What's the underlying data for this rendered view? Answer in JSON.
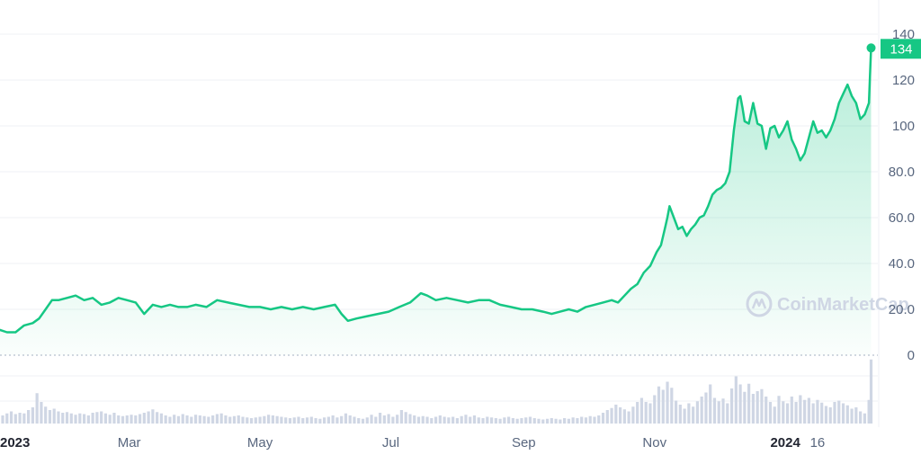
{
  "watermark": {
    "text": "CoinMarketCap"
  },
  "current_price": {
    "label": "134"
  },
  "colors": {
    "line": "#16c784",
    "fill": "#16c784",
    "grid": "#eff2f5",
    "volume": "#cfd6e4",
    "axis_text": "#58667e"
  },
  "chart_data": {
    "type": "area",
    "title": "",
    "xlabel": "",
    "ylabel": "",
    "ylim": [
      0,
      140
    ],
    "yticks": [
      "140",
      "120",
      "100",
      "80.0",
      "60.0",
      "40.0",
      "20.0",
      "0"
    ],
    "ytick_values": [
      140,
      120,
      100,
      80,
      60,
      40,
      20,
      0
    ],
    "xticks": [
      {
        "label": "2023",
        "day": 0,
        "bold": true
      },
      {
        "label": "Mar",
        "day": 59,
        "bold": false
      },
      {
        "label": "May",
        "day": 120,
        "bold": false
      },
      {
        "label": "Jul",
        "day": 181,
        "bold": false
      },
      {
        "label": "Sep",
        "day": 243,
        "bold": false
      },
      {
        "label": "Nov",
        "day": 304,
        "bold": false
      },
      {
        "label": "2024",
        "day": 365,
        "bold": true
      },
      {
        "label": "16",
        "day": 380,
        "bold": false
      }
    ],
    "series": [
      {
        "values": [
          [
            -3,
            11
          ],
          [
            2,
            10
          ],
          [
            6,
            10
          ],
          [
            10,
            13
          ],
          [
            14,
            14
          ],
          [
            17,
            16
          ],
          [
            20,
            20
          ],
          [
            23,
            24
          ],
          [
            26,
            24
          ],
          [
            30,
            25
          ],
          [
            34,
            26
          ],
          [
            38,
            24
          ],
          [
            42,
            25
          ],
          [
            46,
            22
          ],
          [
            50,
            23
          ],
          [
            54,
            25
          ],
          [
            58,
            24
          ],
          [
            62,
            23
          ],
          [
            66,
            18
          ],
          [
            70,
            22
          ],
          [
            74,
            21
          ],
          [
            78,
            22
          ],
          [
            82,
            21
          ],
          [
            86,
            21
          ],
          [
            90,
            22
          ],
          [
            95,
            21
          ],
          [
            100,
            24
          ],
          [
            105,
            23
          ],
          [
            110,
            22
          ],
          [
            115,
            21
          ],
          [
            120,
            21
          ],
          [
            125,
            20
          ],
          [
            130,
            21
          ],
          [
            135,
            20
          ],
          [
            140,
            21
          ],
          [
            145,
            20
          ],
          [
            150,
            21
          ],
          [
            155,
            22
          ],
          [
            158,
            18
          ],
          [
            161,
            15
          ],
          [
            165,
            16
          ],
          [
            170,
            17
          ],
          [
            175,
            18
          ],
          [
            180,
            19
          ],
          [
            185,
            21
          ],
          [
            190,
            23
          ],
          [
            195,
            27
          ],
          [
            198,
            26
          ],
          [
            202,
            24
          ],
          [
            207,
            25
          ],
          [
            212,
            24
          ],
          [
            217,
            23
          ],
          [
            222,
            24
          ],
          [
            227,
            24
          ],
          [
            232,
            22
          ],
          [
            237,
            21
          ],
          [
            242,
            20
          ],
          [
            247,
            20
          ],
          [
            252,
            19
          ],
          [
            256,
            18
          ],
          [
            260,
            19
          ],
          [
            264,
            20
          ],
          [
            268,
            19
          ],
          [
            272,
            21
          ],
          [
            276,
            22
          ],
          [
            280,
            23
          ],
          [
            284,
            24
          ],
          [
            287,
            23
          ],
          [
            290,
            26
          ],
          [
            293,
            29
          ],
          [
            296,
            31
          ],
          [
            299,
            36
          ],
          [
            302,
            39
          ],
          [
            305,
            45
          ],
          [
            307,
            48
          ],
          [
            309,
            56
          ],
          [
            310,
            60
          ],
          [
            311,
            65
          ],
          [
            313,
            60
          ],
          [
            315,
            55
          ],
          [
            317,
            56
          ],
          [
            319,
            52
          ],
          [
            321,
            55
          ],
          [
            323,
            57
          ],
          [
            325,
            60
          ],
          [
            327,
            61
          ],
          [
            329,
            65
          ],
          [
            331,
            70
          ],
          [
            333,
            72
          ],
          [
            335,
            73
          ],
          [
            337,
            75
          ],
          [
            339,
            80
          ],
          [
            341,
            98
          ],
          [
            343,
            112
          ],
          [
            344,
            113
          ],
          [
            345,
            108
          ],
          [
            346,
            102
          ],
          [
            348,
            101
          ],
          [
            350,
            110
          ],
          [
            352,
            101
          ],
          [
            354,
            100
          ],
          [
            356,
            90
          ],
          [
            358,
            99
          ],
          [
            360,
            100
          ],
          [
            362,
            95
          ],
          [
            364,
            98
          ],
          [
            366,
            102
          ],
          [
            368,
            94
          ],
          [
            370,
            90
          ],
          [
            372,
            85
          ],
          [
            374,
            88
          ],
          [
            376,
            95
          ],
          [
            378,
            102
          ],
          [
            380,
            97
          ],
          [
            382,
            98
          ],
          [
            384,
            95
          ],
          [
            386,
            98
          ],
          [
            388,
            103
          ],
          [
            390,
            110
          ],
          [
            392,
            114
          ],
          [
            394,
            118
          ],
          [
            396,
            113
          ],
          [
            398,
            110
          ],
          [
            400,
            103
          ],
          [
            402,
            105
          ],
          [
            404,
            110
          ],
          [
            405,
            134
          ]
        ]
      }
    ],
    "volume": [
      [
        0,
        1.2
      ],
      [
        2,
        1.5
      ],
      [
        4,
        1.8
      ],
      [
        6,
        1.4
      ],
      [
        8,
        1.6
      ],
      [
        10,
        1.5
      ],
      [
        12,
        2.0
      ],
      [
        14,
        2.4
      ],
      [
        16,
        4.5
      ],
      [
        18,
        3.2
      ],
      [
        20,
        2.5
      ],
      [
        22,
        2.0
      ],
      [
        24,
        2.2
      ],
      [
        26,
        1.8
      ],
      [
        28,
        1.6
      ],
      [
        30,
        1.7
      ],
      [
        32,
        1.5
      ],
      [
        34,
        1.3
      ],
      [
        36,
        1.5
      ],
      [
        38,
        1.4
      ],
      [
        40,
        1.2
      ],
      [
        42,
        1.6
      ],
      [
        44,
        1.7
      ],
      [
        46,
        1.8
      ],
      [
        48,
        1.5
      ],
      [
        50,
        1.3
      ],
      [
        52,
        1.6
      ],
      [
        54,
        1.2
      ],
      [
        56,
        1.1
      ],
      [
        58,
        1.2
      ],
      [
        60,
        1.3
      ],
      [
        62,
        1.2
      ],
      [
        64,
        1.4
      ],
      [
        66,
        1.6
      ],
      [
        68,
        1.8
      ],
      [
        70,
        2.1
      ],
      [
        72,
        1.7
      ],
      [
        74,
        1.5
      ],
      [
        76,
        1.2
      ],
      [
        78,
        1.0
      ],
      [
        80,
        1.3
      ],
      [
        82,
        1.1
      ],
      [
        84,
        1.4
      ],
      [
        86,
        1.2
      ],
      [
        88,
        1.0
      ],
      [
        90,
        1.3
      ],
      [
        92,
        1.2
      ],
      [
        94,
        1.1
      ],
      [
        96,
        1.0
      ],
      [
        98,
        1.2
      ],
      [
        100,
        1.4
      ],
      [
        102,
        1.5
      ],
      [
        104,
        1.2
      ],
      [
        106,
        1.0
      ],
      [
        108,
        1.1
      ],
      [
        110,
        1.2
      ],
      [
        112,
        1.0
      ],
      [
        114,
        0.9
      ],
      [
        116,
        0.8
      ],
      [
        118,
        0.9
      ],
      [
        120,
        1.0
      ],
      [
        122,
        1.1
      ],
      [
        124,
        1.3
      ],
      [
        126,
        1.2
      ],
      [
        128,
        1.1
      ],
      [
        130,
        1.0
      ],
      [
        132,
        0.9
      ],
      [
        134,
        0.8
      ],
      [
        136,
        0.9
      ],
      [
        138,
        1.0
      ],
      [
        140,
        0.8
      ],
      [
        142,
        0.9
      ],
      [
        144,
        1.0
      ],
      [
        146,
        0.8
      ],
      [
        148,
        0.7
      ],
      [
        150,
        0.9
      ],
      [
        152,
        1.0
      ],
      [
        154,
        1.2
      ],
      [
        156,
        0.9
      ],
      [
        158,
        1.1
      ],
      [
        160,
        1.5
      ],
      [
        162,
        1.2
      ],
      [
        164,
        1.0
      ],
      [
        166,
        0.8
      ],
      [
        168,
        0.7
      ],
      [
        170,
        0.9
      ],
      [
        172,
        1.3
      ],
      [
        174,
        1.0
      ],
      [
        176,
        1.6
      ],
      [
        178,
        1.2
      ],
      [
        180,
        1.4
      ],
      [
        182,
        1.0
      ],
      [
        184,
        1.3
      ],
      [
        186,
        2.0
      ],
      [
        188,
        1.7
      ],
      [
        190,
        1.4
      ],
      [
        192,
        1.2
      ],
      [
        194,
        1.0
      ],
      [
        196,
        1.1
      ],
      [
        198,
        1.0
      ],
      [
        200,
        0.8
      ],
      [
        202,
        1.0
      ],
      [
        204,
        1.2
      ],
      [
        206,
        1.0
      ],
      [
        208,
        0.9
      ],
      [
        210,
        1.0
      ],
      [
        212,
        0.8
      ],
      [
        214,
        1.1
      ],
      [
        216,
        1.3
      ],
      [
        218,
        1.0
      ],
      [
        220,
        1.2
      ],
      [
        222,
        0.9
      ],
      [
        224,
        0.8
      ],
      [
        226,
        1.0
      ],
      [
        228,
        0.9
      ],
      [
        230,
        0.8
      ],
      [
        232,
        0.7
      ],
      [
        234,
        0.9
      ],
      [
        236,
        1.0
      ],
      [
        238,
        0.8
      ],
      [
        240,
        0.7
      ],
      [
        242,
        0.8
      ],
      [
        244,
        0.9
      ],
      [
        246,
        1.0
      ],
      [
        248,
        0.8
      ],
      [
        250,
        0.7
      ],
      [
        252,
        0.6
      ],
      [
        254,
        0.7
      ],
      [
        256,
        0.8
      ],
      [
        258,
        0.7
      ],
      [
        260,
        0.6
      ],
      [
        262,
        0.8
      ],
      [
        264,
        0.7
      ],
      [
        266,
        0.9
      ],
      [
        268,
        0.8
      ],
      [
        270,
        1.0
      ],
      [
        272,
        0.9
      ],
      [
        274,
        1.1
      ],
      [
        276,
        1.0
      ],
      [
        278,
        1.2
      ],
      [
        280,
        1.6
      ],
      [
        282,
        2.0
      ],
      [
        284,
        2.3
      ],
      [
        286,
        2.8
      ],
      [
        288,
        2.4
      ],
      [
        290,
        2.1
      ],
      [
        292,
        1.8
      ],
      [
        294,
        2.5
      ],
      [
        296,
        3.2
      ],
      [
        298,
        3.8
      ],
      [
        300,
        3.2
      ],
      [
        302,
        3.0
      ],
      [
        304,
        4.2
      ],
      [
        306,
        5.5
      ],
      [
        308,
        5.0
      ],
      [
        310,
        6.2
      ],
      [
        312,
        5.3
      ],
      [
        314,
        3.4
      ],
      [
        316,
        2.8
      ],
      [
        318,
        2.2
      ],
      [
        320,
        3.0
      ],
      [
        322,
        2.5
      ],
      [
        324,
        3.3
      ],
      [
        326,
        4.0
      ],
      [
        328,
        4.6
      ],
      [
        330,
        5.8
      ],
      [
        332,
        3.8
      ],
      [
        334,
        3.3
      ],
      [
        336,
        3.7
      ],
      [
        338,
        3.0
      ],
      [
        340,
        5.2
      ],
      [
        342,
        7.0
      ],
      [
        344,
        5.8
      ],
      [
        346,
        4.7
      ],
      [
        348,
        5.9
      ],
      [
        350,
        4.4
      ],
      [
        352,
        4.8
      ],
      [
        354,
        5.1
      ],
      [
        356,
        4.0
      ],
      [
        358,
        3.2
      ],
      [
        360,
        2.5
      ],
      [
        362,
        4.1
      ],
      [
        364,
        3.3
      ],
      [
        366,
        3.0
      ],
      [
        368,
        4.0
      ],
      [
        370,
        3.2
      ],
      [
        372,
        4.2
      ],
      [
        374,
        3.5
      ],
      [
        376,
        3.8
      ],
      [
        378,
        3.0
      ],
      [
        380,
        3.5
      ],
      [
        382,
        3.1
      ],
      [
        384,
        2.6
      ],
      [
        386,
        2.4
      ],
      [
        388,
        3.2
      ],
      [
        390,
        3.4
      ],
      [
        392,
        3.0
      ],
      [
        394,
        2.7
      ],
      [
        396,
        2.2
      ],
      [
        398,
        2.4
      ],
      [
        400,
        1.8
      ],
      [
        402,
        1.5
      ],
      [
        404,
        3.5
      ],
      [
        405,
        9.5
      ]
    ]
  }
}
